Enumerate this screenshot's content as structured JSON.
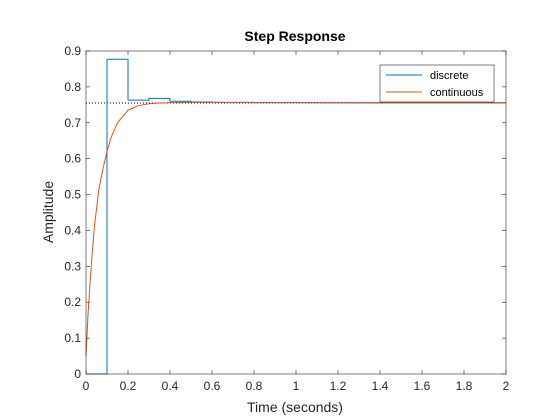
{
  "chart_data": {
    "type": "line",
    "title": "Step Response",
    "xlabel": "Time (seconds)",
    "ylabel": "Amplitude",
    "xlim": [
      0,
      2
    ],
    "ylim": [
      0,
      0.9
    ],
    "x_ticks": [
      0,
      0.2,
      0.4,
      0.6,
      0.8,
      1,
      1.2,
      1.4,
      1.6,
      1.8,
      2
    ],
    "x_tick_labels": [
      "0",
      "0.2",
      "0.4",
      "0.6",
      "0.8",
      "1",
      "1.2",
      "1.4",
      "1.6",
      "1.8",
      "2"
    ],
    "y_ticks": [
      0,
      0.1,
      0.2,
      0.3,
      0.4,
      0.5,
      0.6,
      0.7,
      0.8,
      0.9
    ],
    "y_tick_labels": [
      "0",
      "0.1",
      "0.2",
      "0.3",
      "0.4",
      "0.5",
      "0.6",
      "0.7",
      "0.8",
      "0.9"
    ],
    "grid": false,
    "legend_position": "top-right",
    "steady_state": 0.755,
    "series": [
      {
        "name": "discrete",
        "color": "#0072BD",
        "style": "stairs",
        "x": [
          0,
          0.1,
          0.2,
          0.3,
          0.4,
          0.5,
          0.6,
          0.7,
          0.8,
          0.9,
          1.0,
          2.0
        ],
        "y": [
          0,
          0.877,
          0.763,
          0.768,
          0.76,
          0.758,
          0.757,
          0.757,
          0.756,
          0.756,
          0.756,
          0.756
        ]
      },
      {
        "name": "continuous",
        "color": "#D95319",
        "style": "line",
        "x": [
          0,
          0.01,
          0.02,
          0.03,
          0.04,
          0.05,
          0.06,
          0.08,
          0.1,
          0.12,
          0.15,
          0.2,
          0.25,
          0.3,
          0.35,
          0.4,
          0.5,
          0.6,
          0.8,
          1.0,
          1.5,
          2.0
        ],
        "y": [
          0.05,
          0.17,
          0.26,
          0.34,
          0.41,
          0.46,
          0.51,
          0.57,
          0.62,
          0.66,
          0.7,
          0.735,
          0.748,
          0.753,
          0.755,
          0.756,
          0.757,
          0.757,
          0.756,
          0.756,
          0.755,
          0.755
        ]
      }
    ]
  }
}
